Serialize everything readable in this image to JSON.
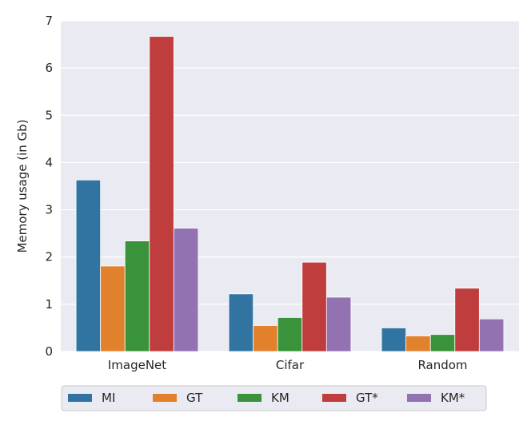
{
  "chart_data": {
    "type": "bar",
    "title": "",
    "xlabel": "",
    "ylabel": "Memory usage (in Gb)",
    "categories": [
      "ImageNet",
      "Cifar",
      "Random"
    ],
    "ylim": [
      0,
      7
    ],
    "yticks": [
      0,
      1,
      2,
      3,
      4,
      5,
      6,
      7
    ],
    "grid": true,
    "legend_placement": "bottom",
    "series": [
      {
        "name": "MI",
        "color": "#3274a1",
        "values": [
          3.63,
          1.22,
          0.5
        ]
      },
      {
        "name": "GT",
        "color": "#e1812c",
        "values": [
          1.81,
          0.55,
          0.33
        ]
      },
      {
        "name": "KM",
        "color": "#3a923a",
        "values": [
          2.34,
          0.72,
          0.36
        ]
      },
      {
        "name": "GT*",
        "color": "#c03d3e",
        "values": [
          6.67,
          1.89,
          1.34
        ]
      },
      {
        "name": "KM*",
        "color": "#9372b2",
        "values": [
          2.61,
          1.15,
          0.69
        ]
      }
    ]
  }
}
